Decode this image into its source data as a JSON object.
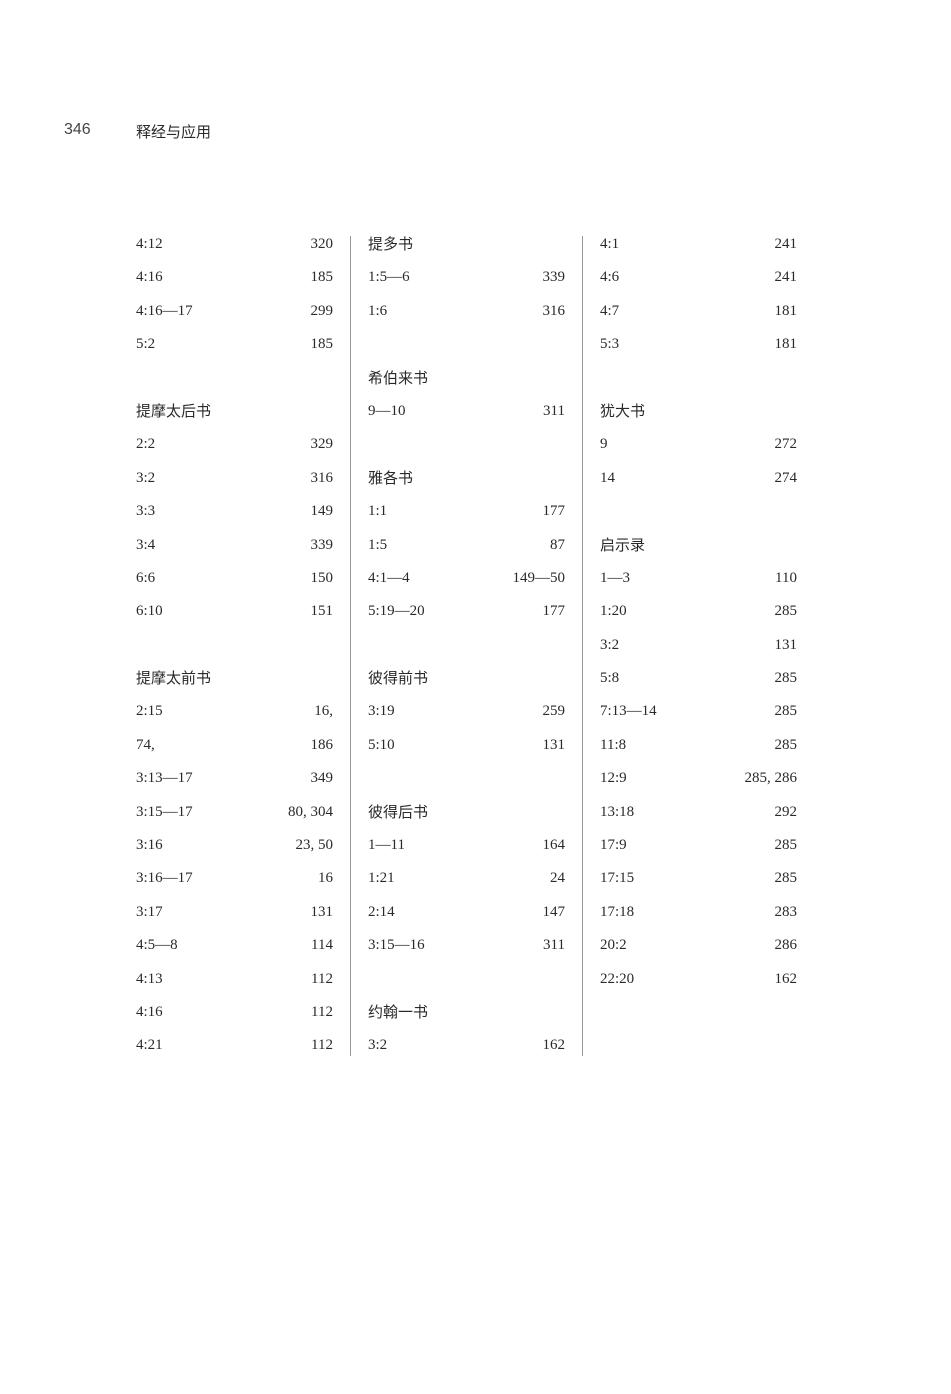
{
  "header": {
    "page_number": "346",
    "running_title": "释经与应用"
  },
  "columns": [
    [
      {
        "type": "entry",
        "ref": "4:12",
        "page": "320"
      },
      {
        "type": "entry",
        "ref": "4:16",
        "page": "185"
      },
      {
        "type": "entry",
        "ref": "4:16—17",
        "page": "299"
      },
      {
        "type": "entry",
        "ref": "5:2",
        "page": "185"
      },
      {
        "type": "blank"
      },
      {
        "type": "heading",
        "title": "提摩太后书"
      },
      {
        "type": "entry",
        "ref": "2:2",
        "page": "329"
      },
      {
        "type": "entry",
        "ref": "3:2",
        "page": "316"
      },
      {
        "type": "entry",
        "ref": "3:3",
        "page": "149"
      },
      {
        "type": "entry",
        "ref": "3:4",
        "page": "339"
      },
      {
        "type": "entry",
        "ref": "6:6",
        "page": "150"
      },
      {
        "type": "entry",
        "ref": "6:10",
        "page": "151"
      },
      {
        "type": "blank"
      },
      {
        "type": "heading",
        "title": "提摩太前书"
      },
      {
        "type": "entry",
        "ref": "2:15",
        "page": "16,"
      },
      {
        "type": "entry",
        "ref": "74,",
        "page": "186"
      },
      {
        "type": "entry",
        "ref": "3:13—17",
        "page": "349"
      },
      {
        "type": "entry",
        "ref": "3:15—17",
        "page": "80, 304"
      },
      {
        "type": "entry",
        "ref": "3:16",
        "page": "23, 50"
      },
      {
        "type": "entry",
        "ref": "3:16—17",
        "page": "16"
      },
      {
        "type": "entry",
        "ref": "3:17",
        "page": "131"
      },
      {
        "type": "entry",
        "ref": "4:5—8",
        "page": "114"
      },
      {
        "type": "entry",
        "ref": "4:13",
        "page": "112"
      },
      {
        "type": "entry",
        "ref": "4:16",
        "page": "112"
      },
      {
        "type": "entry",
        "ref": "4:21",
        "page": "112"
      }
    ],
    [
      {
        "type": "heading",
        "title": "提多书"
      },
      {
        "type": "entry",
        "ref": "1:5—6",
        "page": "339"
      },
      {
        "type": "entry",
        "ref": "1:6",
        "page": "316"
      },
      {
        "type": "blank"
      },
      {
        "type": "heading",
        "title": "希伯来书"
      },
      {
        "type": "entry",
        "ref": "9—10",
        "page": "311"
      },
      {
        "type": "blank"
      },
      {
        "type": "heading",
        "title": "雅各书"
      },
      {
        "type": "entry",
        "ref": "1:1",
        "page": "177"
      },
      {
        "type": "entry",
        "ref": "1:5",
        "page": "87"
      },
      {
        "type": "entry",
        "ref": "4:1—4",
        "page": "149—50"
      },
      {
        "type": "entry",
        "ref": "5:19—20",
        "page": "177"
      },
      {
        "type": "blank"
      },
      {
        "type": "heading",
        "title": "彼得前书"
      },
      {
        "type": "entry",
        "ref": "3:19",
        "page": "259"
      },
      {
        "type": "entry",
        "ref": "5:10",
        "page": "131"
      },
      {
        "type": "blank"
      },
      {
        "type": "heading",
        "title": "彼得后书"
      },
      {
        "type": "entry",
        "ref": "1—11",
        "page": "164"
      },
      {
        "type": "entry",
        "ref": "1:21",
        "page": "24"
      },
      {
        "type": "entry",
        "ref": "2:14",
        "page": "147"
      },
      {
        "type": "entry",
        "ref": "3:15—16",
        "page": "311"
      },
      {
        "type": "blank"
      },
      {
        "type": "heading",
        "title": "约翰一书"
      },
      {
        "type": "entry",
        "ref": "3:2",
        "page": "162"
      }
    ],
    [
      {
        "type": "entry",
        "ref": "4:1",
        "page": "241"
      },
      {
        "type": "entry",
        "ref": "4:6",
        "page": "241"
      },
      {
        "type": "entry",
        "ref": "4:7",
        "page": "181"
      },
      {
        "type": "entry",
        "ref": "5:3",
        "page": "181"
      },
      {
        "type": "blank"
      },
      {
        "type": "heading",
        "title": "犹大书"
      },
      {
        "type": "entry",
        "ref": "9",
        "page": "272"
      },
      {
        "type": "entry",
        "ref": "14",
        "page": "274"
      },
      {
        "type": "blank"
      },
      {
        "type": "heading",
        "title": "启示录"
      },
      {
        "type": "entry",
        "ref": "1—3",
        "page": "110"
      },
      {
        "type": "entry",
        "ref": "1:20",
        "page": "285"
      },
      {
        "type": "entry",
        "ref": "3:2",
        "page": "131"
      },
      {
        "type": "entry",
        "ref": "5:8",
        "page": "285"
      },
      {
        "type": "entry",
        "ref": "7:13—14",
        "page": "285"
      },
      {
        "type": "entry",
        "ref": "11:8",
        "page": "285"
      },
      {
        "type": "entry",
        "ref": "12:9",
        "page": "285, 286"
      },
      {
        "type": "entry",
        "ref": "13:18",
        "page": "292"
      },
      {
        "type": "entry",
        "ref": "17:9",
        "page": "285"
      },
      {
        "type": "entry",
        "ref": "17:15",
        "page": "285"
      },
      {
        "type": "entry",
        "ref": "17:18",
        "page": "283"
      },
      {
        "type": "entry",
        "ref": "20:2",
        "page": "286"
      },
      {
        "type": "entry",
        "ref": "22:20",
        "page": "162"
      }
    ]
  ]
}
